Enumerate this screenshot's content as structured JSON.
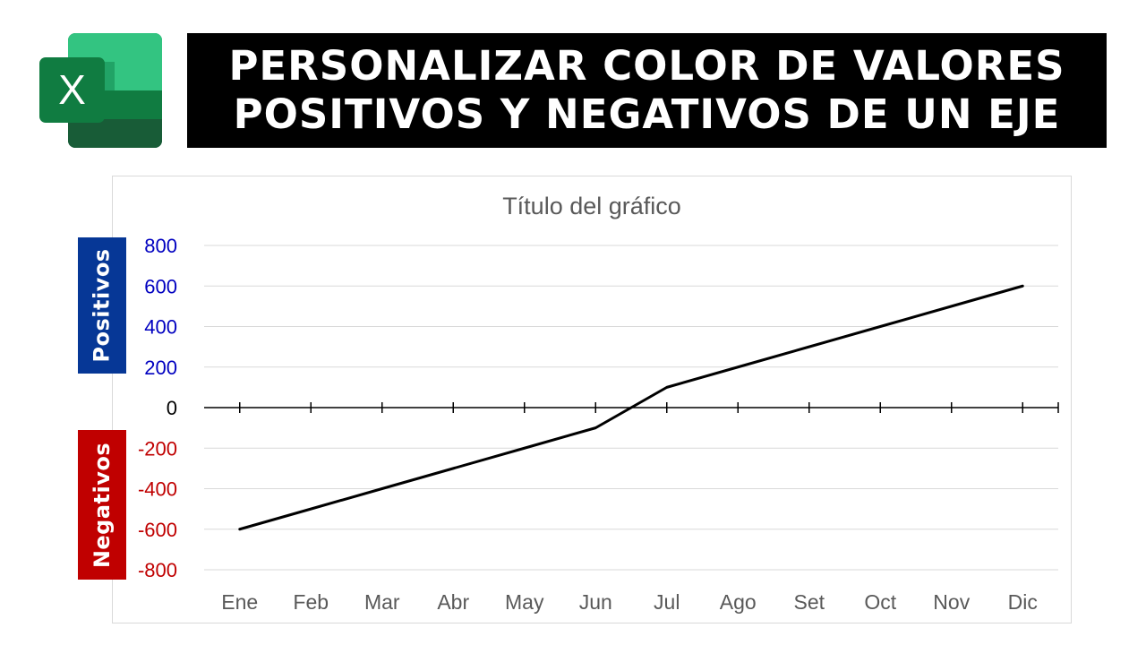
{
  "app_icon": "excel-logo-icon",
  "logo": {
    "letter": "X"
  },
  "banner": {
    "line1": "PERSONALIZAR COLOR DE VALORES",
    "line2": "POSITIVOS Y NEGATIVOS DE UN EJE"
  },
  "side_labels": {
    "positive": "Positivos",
    "negative": "Negativos"
  },
  "colors": {
    "positive": "#0000C0",
    "negative": "#C00000",
    "zero": "#000000",
    "line": "#000000",
    "gridline": "#d9d9d9",
    "positive_label_bg": "#063796",
    "negative_label_bg": "#c00000"
  },
  "chart_data": {
    "type": "line",
    "title": "Título del gráfico",
    "categories": [
      "Ene",
      "Feb",
      "Mar",
      "Abr",
      "May",
      "Jun",
      "Jul",
      "Ago",
      "Set",
      "Oct",
      "Nov",
      "Dic"
    ],
    "series": [
      {
        "values": [
          -600,
          -500,
          -400,
          -300,
          -200,
          -100,
          100,
          200,
          300,
          400,
          500,
          600
        ]
      }
    ],
    "ylim": [
      -800,
      800
    ],
    "yticks": [
      800,
      600,
      400,
      200,
      0,
      -200,
      -400,
      -600,
      -800
    ],
    "ytick_labels": [
      "800",
      "600",
      "400",
      "200",
      "0",
      "-200",
      "-400",
      "-600",
      "-800"
    ],
    "grid": true,
    "legend": "none",
    "xlabel": "",
    "ylabel": ""
  }
}
